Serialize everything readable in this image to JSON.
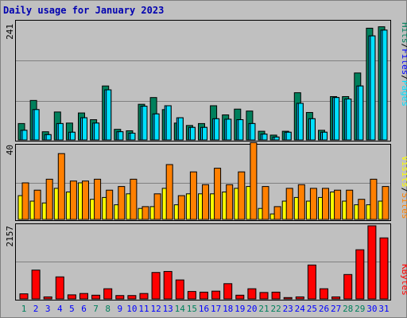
{
  "title": "Daily usage for January 2023",
  "legend": {
    "pages": "Pages",
    "files": "Files",
    "hits": "Hits",
    "sites": "Sites",
    "visits": "Visits",
    "kbytes": "KBytes",
    "sep": "/"
  },
  "colors": {
    "hits": "#00805c",
    "files": "#00c0ff",
    "pages": "#00e0ff",
    "visits": "#ff8000",
    "sites": "#ffff00",
    "kbytes": "#ff0000",
    "title": "#0000b0",
    "weekend_day": "#00805c",
    "weekday_day": "#0000ff"
  },
  "chart_data": [
    {
      "type": "bar",
      "name": "hits-files-pages",
      "ymax": 241,
      "categories": [
        "1",
        "2",
        "3",
        "4",
        "5",
        "6",
        "7",
        "8",
        "9",
        "10",
        "11",
        "12",
        "13",
        "14",
        "15",
        "16",
        "17",
        "18",
        "19",
        "20",
        "21",
        "22",
        "23",
        "24",
        "25",
        "26",
        "27",
        "28",
        "29",
        "30",
        "31"
      ],
      "weekend_days": [
        1,
        7,
        8,
        14,
        15,
        21,
        22,
        28,
        29
      ],
      "series": [
        {
          "name": "Hits",
          "values": [
            34,
            82,
            17,
            58,
            35,
            56,
            42,
            112,
            22,
            19,
            74,
            88,
            63,
            35,
            30,
            34,
            71,
            52,
            64,
            60,
            18,
            10,
            18,
            98,
            57,
            20,
            90,
            90,
            139,
            232,
            235
          ]
        },
        {
          "name": "Files",
          "values": [
            20,
            63,
            11,
            34,
            16,
            46,
            35,
            104,
            17,
            14,
            70,
            54,
            71,
            46,
            26,
            26,
            44,
            43,
            42,
            34,
            12,
            6,
            16,
            76,
            44,
            16,
            88,
            85,
            112,
            216,
            228
          ]
        },
        {
          "name": "Pages",
          "values": [
            20,
            63,
            11,
            34,
            16,
            46,
            35,
            104,
            17,
            14,
            70,
            54,
            71,
            46,
            26,
            26,
            44,
            43,
            42,
            34,
            12,
            6,
            16,
            76,
            44,
            16,
            88,
            85,
            112,
            216,
            228
          ]
        }
      ]
    },
    {
      "type": "bar",
      "name": "visits-sites",
      "ymax": 40,
      "categories": [
        "1",
        "2",
        "3",
        "4",
        "5",
        "6",
        "7",
        "8",
        "9",
        "10",
        "11",
        "12",
        "13",
        "14",
        "15",
        "16",
        "17",
        "18",
        "19",
        "20",
        "21",
        "22",
        "23",
        "24",
        "25",
        "26",
        "27",
        "28",
        "29",
        "30",
        "31"
      ],
      "series": [
        {
          "name": "Visits",
          "values": [
            20,
            16,
            22,
            36,
            21,
            21,
            22,
            16,
            18,
            22,
            7,
            14,
            30,
            13,
            26,
            19,
            28,
            19,
            26,
            42,
            18,
            7,
            17,
            19,
            17,
            17,
            16,
            16,
            11,
            22,
            18
          ]
        },
        {
          "name": "Sites",
          "values": [
            13,
            10,
            9,
            17,
            15,
            20,
            11,
            12,
            8,
            14,
            6,
            7,
            17,
            8,
            14,
            14,
            14,
            15,
            17,
            18,
            6,
            3,
            10,
            12,
            10,
            12,
            15,
            10,
            8,
            8,
            10
          ]
        }
      ]
    },
    {
      "type": "bar",
      "name": "kbytes",
      "ymax": 2157,
      "categories": [
        "1",
        "2",
        "3",
        "4",
        "5",
        "6",
        "7",
        "8",
        "9",
        "10",
        "11",
        "12",
        "13",
        "14",
        "15",
        "16",
        "17",
        "18",
        "19",
        "20",
        "21",
        "22",
        "23",
        "24",
        "25",
        "26",
        "27",
        "28",
        "29",
        "30",
        "31"
      ],
      "series": [
        {
          "name": "KBytes",
          "values": [
            150,
            850,
            60,
            650,
            120,
            160,
            110,
            300,
            100,
            100,
            160,
            780,
            810,
            560,
            220,
            200,
            230,
            450,
            110,
            300,
            190,
            200,
            40,
            60,
            1000,
            300,
            60,
            720,
            1450,
            2157,
            1800
          ]
        }
      ]
    }
  ]
}
